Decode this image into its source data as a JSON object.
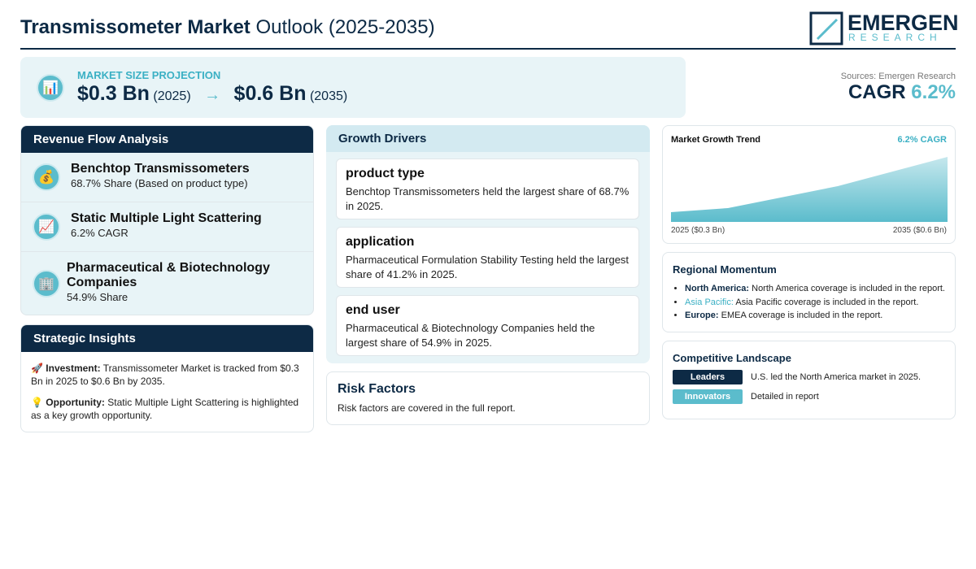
{
  "header": {
    "title_bold": "Transmissometer Market",
    "title_rest": "Outlook (2025-2035)",
    "logo_top": "EMERGEN",
    "logo_bottom": "RESEARCH"
  },
  "projection": {
    "label": "MARKET SIZE PROJECTION",
    "start_value": "$0.3 Bn",
    "start_year": "(2025)",
    "end_value": "$0.6 Bn",
    "end_year": "(2035)"
  },
  "summary": {
    "source": "Sources: Emergen Research",
    "cagr_label": "CAGR",
    "cagr_value": "6.2%"
  },
  "revenue_flow": {
    "title": "Revenue Flow Analysis",
    "items": [
      {
        "name": "Benchtop Transmissometers",
        "detail": "68.7% Share (Based on product type)"
      },
      {
        "name": "Static Multiple Light Scattering",
        "detail": "6.2% CAGR"
      },
      {
        "name": "Pharmaceutical & Biotechnology Companies",
        "detail": "54.9% Share"
      }
    ]
  },
  "insights": {
    "title": "Strategic Insights",
    "items": [
      {
        "label": "Investment:",
        "text": "Transmissometer Market is tracked from $0.3 Bn in 2025 to $0.6 Bn by 2035."
      },
      {
        "label": "Opportunity:",
        "text": "Static Multiple Light Scattering is highlighted as a key growth opportunity."
      }
    ]
  },
  "growth_drivers": {
    "title": "Growth Drivers",
    "items": [
      {
        "heading": "product type",
        "text": "Benchtop Transmissometers held the largest share of 68.7% in 2025."
      },
      {
        "heading": "application",
        "text": "Pharmaceutical Formulation Stability Testing held the largest share of 41.2% in 2025."
      },
      {
        "heading": "end user",
        "text": "Pharmaceutical & Biotechnology Companies held the largest share of 54.9% in 2025."
      }
    ]
  },
  "risk": {
    "title": "Risk Factors",
    "text": "Risk factors are covered in the full report."
  },
  "trend": {
    "title": "Market Growth Trend",
    "cagr": "6.2% CAGR",
    "start_label": "2025 ($0.3 Bn)",
    "end_label": "2035 ($0.6 Bn)"
  },
  "regional": {
    "title": "Regional Momentum",
    "items": [
      {
        "region": "North America:",
        "text": "North America coverage is included in the report."
      },
      {
        "region": "Asia Pacific:",
        "text": "Asia Pacific coverage is included in the report."
      },
      {
        "region": "Europe:",
        "text": "EMEA coverage is included in the report."
      }
    ]
  },
  "competitive": {
    "title": "Competitive Landscape",
    "items": [
      {
        "tag": "Leaders",
        "text": "U.S. led the North America market in 2025."
      },
      {
        "tag": "Innovators",
        "text": "Detailed in report"
      }
    ]
  }
}
